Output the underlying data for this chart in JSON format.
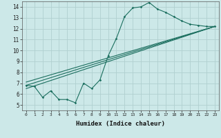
{
  "xlabel": "Humidex (Indice chaleur)",
  "ylabel": "",
  "bg_color": "#cce8e8",
  "grid_color": "#b0d0d0",
  "line_color": "#1a6e5e",
  "xlim": [
    -0.5,
    23.5
  ],
  "ylim": [
    4.5,
    14.5
  ],
  "xticks": [
    0,
    1,
    2,
    3,
    4,
    5,
    6,
    7,
    8,
    9,
    10,
    11,
    12,
    13,
    14,
    15,
    16,
    17,
    18,
    19,
    20,
    21,
    22,
    23
  ],
  "yticks": [
    5,
    6,
    7,
    8,
    9,
    10,
    11,
    12,
    13,
    14
  ],
  "line1_x": [
    0,
    1,
    2,
    3,
    4,
    5,
    6,
    7,
    8,
    9,
    10,
    11,
    12,
    13,
    14,
    15,
    16,
    17,
    18,
    19,
    20,
    21,
    22,
    23
  ],
  "line1_y": [
    6.8,
    6.7,
    5.7,
    6.3,
    5.5,
    5.5,
    5.2,
    7.0,
    6.5,
    7.3,
    9.5,
    11.1,
    13.1,
    13.9,
    14.0,
    14.4,
    13.8,
    13.5,
    13.1,
    12.7,
    12.4,
    12.3,
    12.2,
    12.2
  ],
  "line2_x": [
    0,
    23
  ],
  "line2_y": [
    6.8,
    12.2
  ],
  "line3_x": [
    0,
    23
  ],
  "line3_y": [
    6.5,
    12.2
  ],
  "line4_x": [
    0,
    23
  ],
  "line4_y": [
    7.1,
    12.2
  ]
}
